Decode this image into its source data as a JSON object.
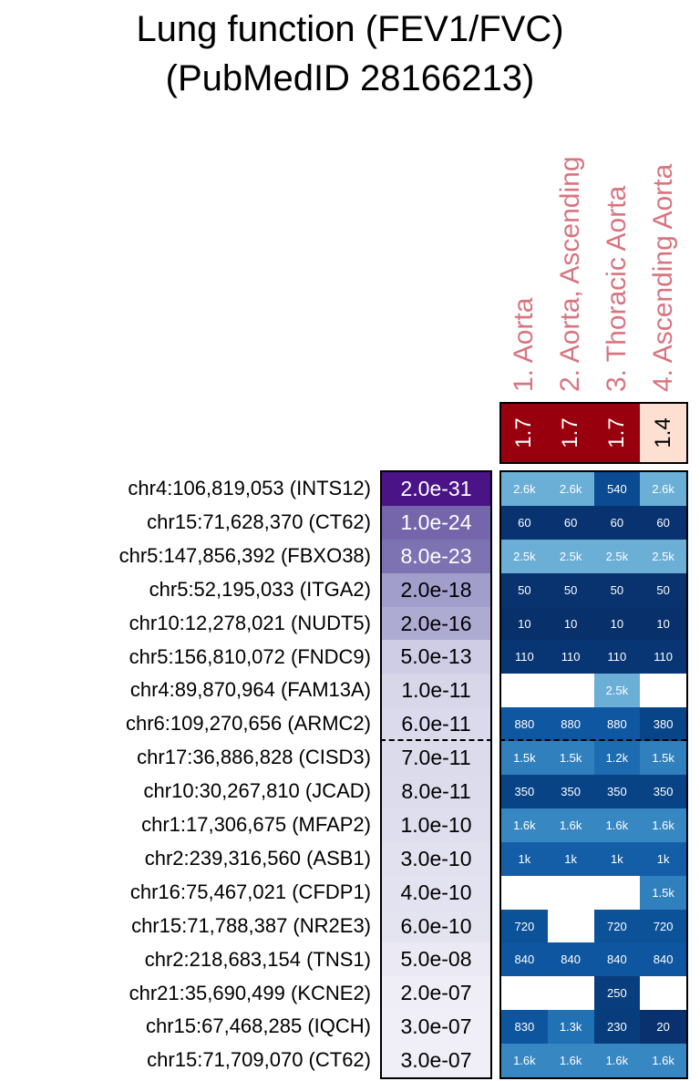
{
  "chart_data": {
    "type": "heatmap",
    "title": [
      "Lung function (FEV1/FVC)",
      "(PubMedID 28166213)"
    ],
    "columns": [
      "1. Aorta",
      "2. Aorta, Ascending",
      "3. Thoracic Aorta",
      "4. Ascending Aorta"
    ],
    "column_scores": [
      "1.7",
      "1.7",
      "1.7",
      "1.4"
    ],
    "column_score_colors": [
      "#99000d",
      "#99000d",
      "#99000d",
      "#fee0d2"
    ],
    "rows": [
      {
        "label": "chr4:106,819,053 (INTS12)",
        "p": "2.0e-31",
        "pcolor": "#4a1486",
        "values": [
          "2.6k",
          "2.6k",
          "540",
          "2.6k"
        ]
      },
      {
        "label": "chr15:71,628,370 (CT62)",
        "p": "1.0e-24",
        "pcolor": "#7566ab",
        "values": [
          "60",
          "60",
          "60",
          "60"
        ]
      },
      {
        "label": "chr5:147,856,392 (FBXO38)",
        "p": "8.0e-23",
        "pcolor": "#7d73b2",
        "values": [
          "2.5k",
          "2.5k",
          "2.5k",
          "2.5k"
        ]
      },
      {
        "label": "chr5:52,195,033 (ITGA2)",
        "p": "2.0e-18",
        "pcolor": "#a19ecc",
        "values": [
          "50",
          "50",
          "50",
          "50"
        ]
      },
      {
        "label": "chr10:12,278,021 (NUDT5)",
        "p": "2.0e-16",
        "pcolor": "#aeabd3",
        "values": [
          "10",
          "10",
          "10",
          "10"
        ]
      },
      {
        "label": "chr5:156,810,072 (FNDC9)",
        "p": "5.0e-13",
        "pcolor": "#cfcde6",
        "values": [
          "110",
          "110",
          "110",
          "110"
        ]
      },
      {
        "label": "chr4:89,870,964 (FAM13A)",
        "p": "1.0e-11",
        "pcolor": "#d8d7ea",
        "values": [
          "",
          "",
          "2.5k",
          ""
        ]
      },
      {
        "label": "chr6:109,270,656 (ARMC2)",
        "p": "6.0e-11",
        "pcolor": "#dbdaec",
        "values": [
          "880",
          "880",
          "880",
          "380"
        ]
      },
      {
        "label": "chr17:36,886,828 (CISD3)",
        "p": "7.0e-11",
        "pcolor": "#dcdbec",
        "values": [
          "1.5k",
          "1.5k",
          "1.2k",
          "1.5k"
        ]
      },
      {
        "label": "chr10:30,267,810 (JCAD)",
        "p": "8.0e-11",
        "pcolor": "#dddced",
        "values": [
          "350",
          "350",
          "350",
          "350"
        ]
      },
      {
        "label": "chr1:17,306,675 (MFAP2)",
        "p": "1.0e-10",
        "pcolor": "#dfdeee",
        "values": [
          "1.6k",
          "1.6k",
          "1.6k",
          "1.6k"
        ]
      },
      {
        "label": "chr2:239,316,560 (ASB1)",
        "p": "3.0e-10",
        "pcolor": "#e2e1ef",
        "values": [
          "1k",
          "1k",
          "1k",
          "1k"
        ]
      },
      {
        "label": "chr16:75,467,021 (CFDP1)",
        "p": "4.0e-10",
        "pcolor": "#e3e2f0",
        "values": [
          "",
          "",
          "",
          "1.5k"
        ]
      },
      {
        "label": "chr15:71,788,387 (NR2E3)",
        "p": "6.0e-10",
        "pcolor": "#e4e3f0",
        "values": [
          "720",
          "",
          "720",
          "720"
        ]
      },
      {
        "label": "chr2:218,683,154 (TNS1)",
        "p": "5.0e-08",
        "pcolor": "#ebeaf4",
        "values": [
          "840",
          "840",
          "840",
          "840"
        ]
      },
      {
        "label": "chr21:35,690,499 (KCNE2)",
        "p": "2.0e-07",
        "pcolor": "#efeef6",
        "values": [
          "",
          "",
          "250",
          ""
        ]
      },
      {
        "label": "chr15:67,468,285 (IQCH)",
        "p": "3.0e-07",
        "pcolor": "#f0eff7",
        "values": [
          "830",
          "1.3k",
          "230",
          "20"
        ]
      },
      {
        "label": "chr15:71,709,070 (CT62)",
        "p": "3.0e-07",
        "pcolor": "#f0eff7",
        "values": [
          "1.6k",
          "1.6k",
          "1.6k",
          "1.6k"
        ]
      }
    ]
  }
}
